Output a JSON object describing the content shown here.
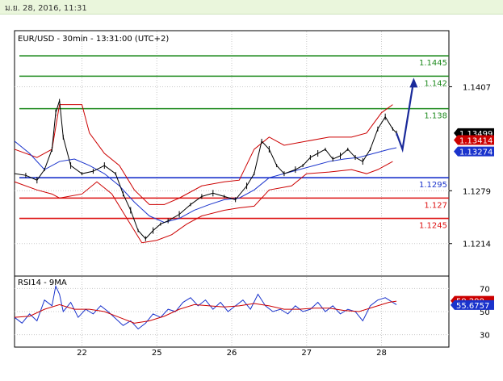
{
  "timestamp": "ม.ย. 28, 2016, 11:31",
  "chart_data": {
    "type": "line",
    "panels": [
      {
        "id": "price",
        "title": "EUR/USD - 30min - 13:31:00 (UTC+2)",
        "symbol": "EUR/USD",
        "ylim": [
          1.1175,
          1.1475
        ],
        "y_ticks": [
          "1.1407",
          "1.1279",
          "1.1214"
        ],
        "x_ticks": [
          {
            "label": "22",
            "day": 0.9
          },
          {
            "label": "25",
            "day": 1.9
          },
          {
            "label": "26",
            "day": 2.9
          },
          {
            "label": "27",
            "day": 3.9
          },
          {
            "label": "28",
            "day": 4.9
          }
        ],
        "price_tags": [
          {
            "label": "1.13499",
            "value": 1.13499,
            "color": "#000000"
          },
          {
            "label": "1.13414",
            "value": 1.13414,
            "color": "#cc0000"
          },
          {
            "label": "1.13274",
            "value": 1.13274,
            "color": "#1a33cc"
          }
        ],
        "levels": [
          {
            "label": "1.1445",
            "value": 1.1445,
            "role": "resistance",
            "color": "#1e8a1e"
          },
          {
            "label": "1.142",
            "value": 1.142,
            "role": "resistance",
            "color": "#1e8a1e"
          },
          {
            "label": "1.138",
            "value": 1.138,
            "role": "resistance",
            "color": "#1e8a1e"
          },
          {
            "label": "1.1295",
            "value": 1.1295,
            "role": "pivot",
            "color": "#1a33cc"
          },
          {
            "label": "1.127",
            "value": 1.127,
            "role": "support",
            "color": "#dd1111"
          },
          {
            "label": "1.1245",
            "value": 1.1245,
            "role": "support",
            "color": "#dd1111"
          }
        ],
        "series": [
          {
            "kind": "ohlc",
            "color": "#000000",
            "close": [
              [
                0.0,
                1.13
              ],
              [
                0.15,
                1.1298
              ],
              [
                0.3,
                1.1292
              ],
              [
                0.4,
                1.1305
              ],
              [
                0.5,
                1.133
              ],
              [
                0.55,
                1.1375
              ],
              [
                0.6,
                1.139
              ],
              [
                0.65,
                1.1345
              ],
              [
                0.75,
                1.131
              ],
              [
                0.9,
                1.13
              ],
              [
                1.05,
                1.1303
              ],
              [
                1.2,
                1.131
              ],
              [
                1.35,
                1.13
              ],
              [
                1.45,
                1.1275
              ],
              [
                1.55,
                1.1255
              ],
              [
                1.65,
                1.123
              ],
              [
                1.75,
                1.122
              ],
              [
                1.85,
                1.123
              ],
              [
                1.95,
                1.1238
              ],
              [
                2.05,
                1.1242
              ],
              [
                2.2,
                1.125
              ],
              [
                2.35,
                1.1262
              ],
              [
                2.5,
                1.1272
              ],
              [
                2.65,
                1.1276
              ],
              [
                2.8,
                1.1272
              ],
              [
                2.95,
                1.1268
              ],
              [
                3.1,
                1.1285
              ],
              [
                3.2,
                1.13
              ],
              [
                3.3,
                1.134
              ],
              [
                3.4,
                1.133
              ],
              [
                3.5,
                1.131
              ],
              [
                3.6,
                1.13
              ],
              [
                3.75,
                1.1305
              ],
              [
                3.85,
                1.131
              ],
              [
                3.95,
                1.132
              ],
              [
                4.05,
                1.1325
              ],
              [
                4.15,
                1.133
              ],
              [
                4.25,
                1.1318
              ],
              [
                4.35,
                1.1322
              ],
              [
                4.45,
                1.133
              ],
              [
                4.55,
                1.132
              ],
              [
                4.65,
                1.1315
              ],
              [
                4.75,
                1.133
              ],
              [
                4.85,
                1.1355
              ],
              [
                4.95,
                1.137
              ],
              [
                5.05,
                1.1355
              ],
              [
                5.1,
                1.135
              ]
            ]
          },
          {
            "kind": "bollinger",
            "color": "#cc0000",
            "upper": [
              [
                0.0,
                1.133
              ],
              [
                0.3,
                1.132
              ],
              [
                0.5,
                1.133
              ],
              [
                0.6,
                1.1385
              ],
              [
                0.9,
                1.1385
              ],
              [
                1.0,
                1.135
              ],
              [
                1.2,
                1.1325
              ],
              [
                1.4,
                1.131
              ],
              [
                1.6,
                1.128
              ],
              [
                1.8,
                1.1262
              ],
              [
                2.0,
                1.1262
              ],
              [
                2.2,
                1.127
              ],
              [
                2.5,
                1.1285
              ],
              [
                2.8,
                1.129
              ],
              [
                3.0,
                1.1292
              ],
              [
                3.2,
                1.133
              ],
              [
                3.4,
                1.1345
              ],
              [
                3.6,
                1.1335
              ],
              [
                3.9,
                1.134
              ],
              [
                4.2,
                1.1345
              ],
              [
                4.5,
                1.1345
              ],
              [
                4.7,
                1.135
              ],
              [
                4.9,
                1.1375
              ],
              [
                5.05,
                1.1385
              ]
            ],
            "lower": [
              [
                0.0,
                1.129
              ],
              [
                0.3,
                1.128
              ],
              [
                0.5,
                1.1275
              ],
              [
                0.6,
                1.127
              ],
              [
                0.9,
                1.1275
              ],
              [
                1.1,
                1.129
              ],
              [
                1.3,
                1.1275
              ],
              [
                1.5,
                1.1245
              ],
              [
                1.7,
                1.1215
              ],
              [
                1.9,
                1.1218
              ],
              [
                2.1,
                1.1225
              ],
              [
                2.3,
                1.1238
              ],
              [
                2.5,
                1.1248
              ],
              [
                2.8,
                1.1255
              ],
              [
                3.0,
                1.1258
              ],
              [
                3.2,
                1.126
              ],
              [
                3.4,
                1.128
              ],
              [
                3.7,
                1.1285
              ],
              [
                3.9,
                1.13
              ],
              [
                4.2,
                1.1302
              ],
              [
                4.5,
                1.1305
              ],
              [
                4.7,
                1.13
              ],
              [
                4.85,
                1.1305
              ],
              [
                5.05,
                1.1315
              ]
            ]
          },
          {
            "kind": "moving_average",
            "color": "#1a33cc",
            "points": [
              [
                0.0,
                1.134
              ],
              [
                0.2,
                1.1325
              ],
              [
                0.4,
                1.1305
              ],
              [
                0.6,
                1.1315
              ],
              [
                0.8,
                1.1318
              ],
              [
                1.0,
                1.131
              ],
              [
                1.2,
                1.13
              ],
              [
                1.4,
                1.1285
              ],
              [
                1.6,
                1.1265
              ],
              [
                1.8,
                1.1248
              ],
              [
                2.0,
                1.124
              ],
              [
                2.2,
                1.1245
              ],
              [
                2.4,
                1.1255
              ],
              [
                2.6,
                1.1262
              ],
              [
                2.8,
                1.1268
              ],
              [
                3.0,
                1.127
              ],
              [
                3.2,
                1.128
              ],
              [
                3.4,
                1.1295
              ],
              [
                3.6,
                1.13
              ],
              [
                3.8,
                1.1305
              ],
              [
                4.0,
                1.131
              ],
              [
                4.2,
                1.1315
              ],
              [
                4.4,
                1.1318
              ],
              [
                4.6,
                1.132
              ],
              [
                4.8,
                1.1325
              ],
              [
                5.0,
                1.133
              ],
              [
                5.1,
                1.1332
              ]
            ]
          },
          {
            "kind": "projection",
            "color": "#1a2a9a",
            "points": [
              [
                5.1,
                1.135
              ],
              [
                5.18,
                1.133
              ],
              [
                5.33,
                1.1415
              ]
            ]
          }
        ]
      },
      {
        "id": "rsi",
        "title": "RSI14 - 9MA",
        "ylim": [
          20,
          80
        ],
        "y_ticks": [
          "70",
          "50",
          "30"
        ],
        "tags": [
          {
            "label": "59.299",
            "value": 59.299,
            "color": "#cc0000"
          },
          {
            "label": "55.6757",
            "value": 55.6757,
            "color": "#1a33cc"
          }
        ],
        "series": [
          {
            "name": "RSI14",
            "color": "#1a33cc",
            "points": [
              [
                0.0,
                45
              ],
              [
                0.1,
                40
              ],
              [
                0.2,
                48
              ],
              [
                0.3,
                42
              ],
              [
                0.4,
                60
              ],
              [
                0.5,
                55
              ],
              [
                0.55,
                72
              ],
              [
                0.6,
                65
              ],
              [
                0.65,
                50
              ],
              [
                0.75,
                58
              ],
              [
                0.85,
                45
              ],
              [
                0.95,
                52
              ],
              [
                1.05,
                48
              ],
              [
                1.15,
                55
              ],
              [
                1.25,
                50
              ],
              [
                1.35,
                44
              ],
              [
                1.45,
                38
              ],
              [
                1.55,
                42
              ],
              [
                1.65,
                35
              ],
              [
                1.75,
                40
              ],
              [
                1.85,
                48
              ],
              [
                1.95,
                45
              ],
              [
                2.05,
                52
              ],
              [
                2.15,
                50
              ],
              [
                2.25,
                58
              ],
              [
                2.35,
                62
              ],
              [
                2.45,
                55
              ],
              [
                2.55,
                60
              ],
              [
                2.65,
                52
              ],
              [
                2.75,
                58
              ],
              [
                2.85,
                50
              ],
              [
                2.95,
                55
              ],
              [
                3.05,
                60
              ],
              [
                3.15,
                52
              ],
              [
                3.25,
                65
              ],
              [
                3.35,
                55
              ],
              [
                3.45,
                50
              ],
              [
                3.55,
                52
              ],
              [
                3.65,
                48
              ],
              [
                3.75,
                55
              ],
              [
                3.85,
                50
              ],
              [
                3.95,
                52
              ],
              [
                4.05,
                58
              ],
              [
                4.15,
                50
              ],
              [
                4.25,
                55
              ],
              [
                4.35,
                48
              ],
              [
                4.45,
                52
              ],
              [
                4.55,
                50
              ],
              [
                4.65,
                42
              ],
              [
                4.75,
                55
              ],
              [
                4.85,
                60
              ],
              [
                4.95,
                62
              ],
              [
                5.05,
                58
              ],
              [
                5.1,
                56
              ]
            ]
          },
          {
            "name": "9MA",
            "color": "#cc0000",
            "points": [
              [
                0.0,
                45
              ],
              [
                0.2,
                46
              ],
              [
                0.4,
                52
              ],
              [
                0.6,
                56
              ],
              [
                0.8,
                52
              ],
              [
                1.0,
                52
              ],
              [
                1.2,
                50
              ],
              [
                1.4,
                45
              ],
              [
                1.6,
                40
              ],
              [
                1.8,
                42
              ],
              [
                2.0,
                46
              ],
              [
                2.2,
                52
              ],
              [
                2.4,
                56
              ],
              [
                2.6,
                55
              ],
              [
                2.8,
                54
              ],
              [
                3.0,
                55
              ],
              [
                3.2,
                57
              ],
              [
                3.4,
                55
              ],
              [
                3.6,
                52
              ],
              [
                3.8,
                52
              ],
              [
                4.0,
                53
              ],
              [
                4.2,
                53
              ],
              [
                4.4,
                51
              ],
              [
                4.6,
                50
              ],
              [
                4.8,
                54
              ],
              [
                5.0,
                58
              ],
              [
                5.1,
                59
              ]
            ]
          }
        ]
      }
    ]
  }
}
